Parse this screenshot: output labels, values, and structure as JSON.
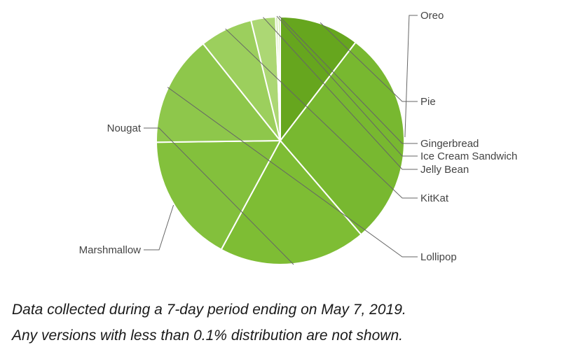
{
  "chart_data": {
    "type": "pie",
    "start_angle_deg": 90,
    "slices": [
      {
        "label": "Pie",
        "value": 10.4,
        "color": "#66a61e"
      },
      {
        "label": "Oreo",
        "value": 28.3,
        "color": "#78b830"
      },
      {
        "label": "Nougat",
        "value": 19.2,
        "color": "#7ebd34"
      },
      {
        "label": "Marshmallow",
        "value": 16.9,
        "color": "#83c03c"
      },
      {
        "label": "Lollipop",
        "value": 14.5,
        "color": "#8ec74b"
      },
      {
        "label": "KitKat",
        "value": 6.9,
        "color": "#9ccf5d"
      },
      {
        "label": "Jelly Bean",
        "value": 3.2,
        "color": "#acd774"
      },
      {
        "label": "Ice Cream Sandwich",
        "value": 0.3,
        "color": "#bfe08f"
      },
      {
        "label": "Gingerbread",
        "value": 0.3,
        "color": "#cde8a6"
      }
    ]
  },
  "captions": {
    "line1": "Data collected during a 7-day period ending on May 7, 2019.",
    "line2": "Any versions with less than 0.1% distribution are not shown."
  }
}
